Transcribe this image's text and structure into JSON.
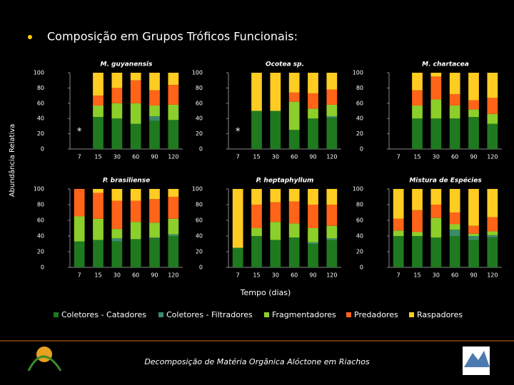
{
  "title": "Composição em Grupos Tróficos Funcionais:",
  "y_label": "Abundância Relativa",
  "x_label": "Tempo (dias)",
  "footer": "Decomposição de Matéria Orgânica Alóctone em Riachos",
  "legend": [
    {
      "name": "Coletores - Catadores",
      "color": "#1f7a1f"
    },
    {
      "name": "Coletores - Filtradores",
      "color": "#3a8c6a"
    },
    {
      "name": "Fragmentadores",
      "color": "#8ccf2a"
    },
    {
      "name": "Predadores",
      "color": "#ff6418"
    },
    {
      "name": "Raspadores",
      "color": "#ffcc22"
    }
  ],
  "chart_data": [
    {
      "type": "bar",
      "stacked": true,
      "title": "M. guyanensis",
      "annotation": "*",
      "categories": [
        "7",
        "15",
        "30",
        "60",
        "90",
        "120"
      ],
      "ylim": [
        0,
        100
      ],
      "yticks": [
        0,
        20,
        40,
        60,
        80,
        100
      ],
      "series": [
        {
          "values": [
            null,
            42,
            40,
            33,
            37,
            38
          ]
        },
        {
          "values": [
            null,
            0,
            0,
            0,
            6,
            0
          ]
        },
        {
          "values": [
            null,
            15,
            20,
            27,
            14,
            20
          ]
        },
        {
          "values": [
            null,
            13,
            20,
            30,
            20,
            26
          ]
        },
        {
          "values": [
            null,
            30,
            20,
            10,
            23,
            16
          ]
        }
      ]
    },
    {
      "type": "bar",
      "stacked": true,
      "title": "Ocotea sp.",
      "annotation": "*",
      "categories": [
        "7",
        "15",
        "30",
        "60",
        "90",
        "120"
      ],
      "ylim": [
        0,
        100
      ],
      "yticks": [
        0,
        20,
        40,
        60,
        80,
        100
      ],
      "series": [
        {
          "values": [
            null,
            50,
            50,
            25,
            40,
            41
          ]
        },
        {
          "values": [
            null,
            0,
            0,
            0,
            0,
            2
          ]
        },
        {
          "values": [
            null,
            0,
            0,
            37,
            13,
            15
          ]
        },
        {
          "values": [
            null,
            0,
            0,
            12,
            20,
            20
          ]
        },
        {
          "values": [
            null,
            50,
            50,
            26,
            27,
            22
          ]
        }
      ]
    },
    {
      "type": "bar",
      "stacked": true,
      "title": "M. chartacea",
      "categories": [
        "7",
        "15",
        "30",
        "60",
        "90",
        "120"
      ],
      "ylim": [
        0,
        100
      ],
      "yticks": [
        0,
        20,
        40,
        60,
        80,
        100
      ],
      "series": [
        {
          "values": [
            null,
            40,
            40,
            40,
            42,
            33
          ]
        },
        {
          "values": [
            null,
            0,
            0,
            0,
            0,
            0
          ]
        },
        {
          "values": [
            null,
            17,
            25,
            17,
            10,
            13
          ]
        },
        {
          "values": [
            null,
            20,
            30,
            15,
            12,
            21
          ]
        },
        {
          "values": [
            null,
            23,
            5,
            28,
            36,
            33
          ]
        }
      ]
    },
    {
      "type": "bar",
      "stacked": true,
      "title": "P. brasiliense",
      "categories": [
        "7",
        "15",
        "30",
        "60",
        "90",
        "120"
      ],
      "ylim": [
        0,
        100
      ],
      "yticks": [
        0,
        20,
        40,
        60,
        80,
        100
      ],
      "series": [
        {
          "values": [
            33,
            35,
            33,
            36,
            37,
            40
          ]
        },
        {
          "values": [
            0,
            0,
            4,
            0,
            1,
            2
          ]
        },
        {
          "values": [
            32,
            27,
            12,
            22,
            19,
            20
          ]
        },
        {
          "values": [
            35,
            33,
            36,
            27,
            30,
            28
          ]
        },
        {
          "values": [
            0,
            5,
            15,
            15,
            13,
            10
          ]
        }
      ]
    },
    {
      "type": "bar",
      "stacked": true,
      "title": "P. heptaphyllum",
      "categories": [
        "7",
        "15",
        "30",
        "60",
        "90",
        "120"
      ],
      "ylim": [
        0,
        100
      ],
      "yticks": [
        0,
        20,
        40,
        60,
        80,
        100
      ],
      "series": [
        {
          "values": [
            25,
            40,
            35,
            38,
            30,
            35
          ]
        },
        {
          "values": [
            0,
            0,
            0,
            0,
            2,
            2
          ]
        },
        {
          "values": [
            0,
            10,
            23,
            18,
            18,
            16
          ]
        },
        {
          "values": [
            0,
            30,
            25,
            28,
            30,
            27
          ]
        },
        {
          "values": [
            75,
            20,
            17,
            16,
            20,
            20
          ]
        }
      ]
    },
    {
      "type": "bar",
      "stacked": true,
      "title": "Mistura de Espécies",
      "categories": [
        "7",
        "15",
        "30",
        "60",
        "90",
        "120"
      ],
      "ylim": [
        0,
        100
      ],
      "yticks": [
        0,
        20,
        40,
        60,
        80,
        100
      ],
      "series": [
        {
          "values": [
            40,
            40,
            38,
            40,
            35,
            38
          ]
        },
        {
          "values": [
            0,
            0,
            0,
            8,
            5,
            3
          ]
        },
        {
          "values": [
            7,
            5,
            25,
            7,
            3,
            5
          ]
        },
        {
          "values": [
            15,
            28,
            17,
            15,
            10,
            18
          ]
        },
        {
          "values": [
            38,
            27,
            20,
            30,
            47,
            36
          ]
        }
      ]
    }
  ]
}
